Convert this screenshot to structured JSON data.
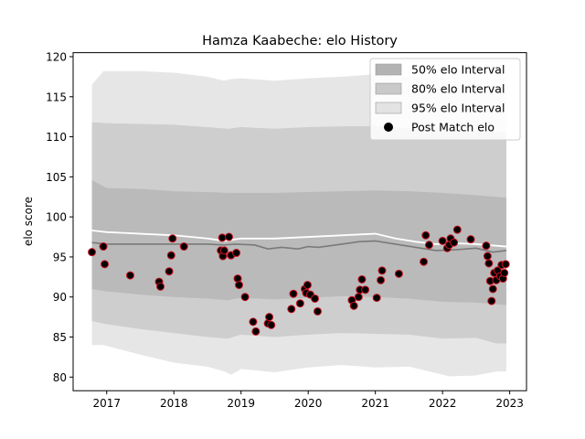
{
  "chart_data": {
    "type": "scatter",
    "title": "Hamza Kaabeche: elo History",
    "xlabel": "",
    "ylabel": "elo score",
    "xlim": [
      2016.5,
      2023.25
    ],
    "ylim": [
      78.3,
      120.5
    ],
    "x_ticks": [
      2017,
      2018,
      2019,
      2020,
      2021,
      2022,
      2023
    ],
    "x_tick_labels": [
      "2017",
      "2018",
      "2019",
      "2020",
      "2021",
      "2022",
      "2023"
    ],
    "y_ticks": [
      80,
      85,
      90,
      95,
      100,
      105,
      110,
      115,
      120
    ],
    "y_tick_labels": [
      "80",
      "85",
      "90",
      "95",
      "100",
      "105",
      "110",
      "115",
      "120"
    ],
    "legend_placement": "top-right",
    "legend": [
      {
        "label": "50% elo Interval",
        "kind": "band",
        "color": "#b3b3b3"
      },
      {
        "label": "80% elo Interval",
        "kind": "band",
        "color": "#c9c9c9"
      },
      {
        "label": "95% elo Interval",
        "kind": "band",
        "color": "#e3e3e3"
      },
      {
        "label": "Post Match elo",
        "kind": "marker",
        "color": "#000000"
      }
    ],
    "colors": {
      "band95": "#e3e3e3",
      "band80": "#cbcbcb",
      "band50": "#b8b8b8",
      "median": "#7a7a7a",
      "mean": "#ffffff",
      "point_fill": "#000000",
      "point_edge": "#cc1122"
    },
    "band95": {
      "x": [
        2016.78,
        2016.95,
        2017.5,
        2018.0,
        2018.5,
        2018.75,
        2018.85,
        2019.0,
        2019.5,
        2020.0,
        2020.5,
        2021.0,
        2021.5,
        2022.0,
        2022.1,
        2022.5,
        2022.8,
        2022.95
      ],
      "upper": [
        116.5,
        118.2,
        118.2,
        118.0,
        117.5,
        117.0,
        117.2,
        117.3,
        117.0,
        117.3,
        117.5,
        117.8,
        117.5,
        117.3,
        117.0,
        117.0,
        117.2,
        117.3
      ],
      "lower": [
        84.0,
        84.0,
        82.8,
        81.8,
        81.3,
        80.7,
        80.3,
        81.0,
        80.6,
        81.2,
        81.5,
        81.2,
        81.3,
        80.3,
        80.1,
        80.2,
        80.7,
        80.7
      ]
    },
    "band80": {
      "x": [
        2016.78,
        2017.0,
        2017.5,
        2018.0,
        2018.5,
        2018.8,
        2019.0,
        2019.5,
        2020.0,
        2020.5,
        2021.0,
        2021.5,
        2022.0,
        2022.5,
        2022.8,
        2022.95
      ],
      "upper": [
        111.8,
        111.7,
        111.6,
        111.5,
        111.2,
        111.0,
        111.2,
        111.0,
        111.2,
        111.3,
        111.3,
        111.1,
        111.0,
        110.8,
        110.6,
        110.5
      ],
      "lower": [
        87.0,
        86.6,
        86.0,
        85.5,
        85.0,
        84.8,
        85.3,
        85.0,
        85.3,
        85.5,
        85.4,
        85.3,
        84.8,
        84.9,
        84.2,
        84.2
      ]
    },
    "band50": {
      "x": [
        2016.78,
        2017.0,
        2017.5,
        2018.0,
        2018.5,
        2018.8,
        2019.0,
        2019.5,
        2020.0,
        2020.5,
        2021.0,
        2021.5,
        2022.0,
        2022.5,
        2022.8,
        2022.95
      ],
      "upper": [
        104.6,
        103.6,
        103.5,
        103.2,
        103.1,
        103.0,
        103.0,
        103.0,
        103.1,
        103.2,
        103.3,
        103.2,
        103.0,
        102.7,
        102.5,
        102.4
      ],
      "lower": [
        91.0,
        90.7,
        90.3,
        90.0,
        89.8,
        89.6,
        89.9,
        89.7,
        89.9,
        90.1,
        90.0,
        89.8,
        89.4,
        89.3,
        89.1,
        89.0
      ]
    },
    "median": {
      "x": [
        2016.78,
        2017.0,
        2017.5,
        2018.0,
        2018.5,
        2018.75,
        2018.9,
        2019.2,
        2019.4,
        2019.6,
        2019.85,
        2020.0,
        2020.15,
        2020.5,
        2020.75,
        2021.0,
        2021.3,
        2021.6,
        2021.9,
        2022.2,
        2022.5,
        2022.75,
        2022.95
      ],
      "y": [
        96.8,
        96.6,
        96.6,
        96.6,
        96.6,
        96.5,
        96.6,
        96.5,
        96.0,
        96.2,
        96.0,
        96.3,
        96.2,
        96.6,
        96.9,
        97.0,
        96.6,
        96.2,
        95.8,
        95.9,
        96.1,
        95.6,
        95.8
      ]
    },
    "mean": {
      "x": [
        2016.78,
        2017.0,
        2017.5,
        2018.0,
        2018.5,
        2018.75,
        2019.0,
        2019.5,
        2020.0,
        2020.5,
        2021.0,
        2021.3,
        2021.6,
        2021.9,
        2022.2,
        2022.5,
        2022.8,
        2022.95
      ],
      "y": [
        98.3,
        98.1,
        97.9,
        97.7,
        97.3,
        97.0,
        97.3,
        97.3,
        97.5,
        97.7,
        97.9,
        97.3,
        96.9,
        96.6,
        96.7,
        96.6,
        96.4,
        96.3
      ]
    },
    "points": [
      {
        "x": 2016.78,
        "y": 95.6
      },
      {
        "x": 2016.95,
        "y": 96.3
      },
      {
        "x": 2016.97,
        "y": 94.1
      },
      {
        "x": 2017.35,
        "y": 92.7
      },
      {
        "x": 2017.78,
        "y": 91.9
      },
      {
        "x": 2017.8,
        "y": 91.3
      },
      {
        "x": 2017.93,
        "y": 93.2
      },
      {
        "x": 2017.96,
        "y": 95.2
      },
      {
        "x": 2017.98,
        "y": 97.3
      },
      {
        "x": 2018.15,
        "y": 96.3
      },
      {
        "x": 2018.7,
        "y": 95.8
      },
      {
        "x": 2018.72,
        "y": 97.4
      },
      {
        "x": 2018.73,
        "y": 95.1
      },
      {
        "x": 2018.75,
        "y": 95.8
      },
      {
        "x": 2018.82,
        "y": 97.5
      },
      {
        "x": 2018.85,
        "y": 95.2
      },
      {
        "x": 2018.93,
        "y": 95.5
      },
      {
        "x": 2018.95,
        "y": 92.3
      },
      {
        "x": 2018.97,
        "y": 91.5
      },
      {
        "x": 2019.06,
        "y": 90.0
      },
      {
        "x": 2019.18,
        "y": 86.9
      },
      {
        "x": 2019.22,
        "y": 85.7
      },
      {
        "x": 2019.4,
        "y": 86.7
      },
      {
        "x": 2019.42,
        "y": 87.5
      },
      {
        "x": 2019.45,
        "y": 86.5
      },
      {
        "x": 2019.75,
        "y": 88.5
      },
      {
        "x": 2019.78,
        "y": 90.4
      },
      {
        "x": 2019.88,
        "y": 89.2
      },
      {
        "x": 2019.95,
        "y": 91.0
      },
      {
        "x": 2019.97,
        "y": 90.5
      },
      {
        "x": 2019.99,
        "y": 91.5
      },
      {
        "x": 2020.03,
        "y": 90.3
      },
      {
        "x": 2020.1,
        "y": 89.8
      },
      {
        "x": 2020.14,
        "y": 88.2
      },
      {
        "x": 2020.65,
        "y": 89.6
      },
      {
        "x": 2020.68,
        "y": 88.9
      },
      {
        "x": 2020.75,
        "y": 90.0
      },
      {
        "x": 2020.77,
        "y": 90.9
      },
      {
        "x": 2020.8,
        "y": 92.2
      },
      {
        "x": 2020.85,
        "y": 90.9
      },
      {
        "x": 2021.02,
        "y": 89.9
      },
      {
        "x": 2021.08,
        "y": 92.1
      },
      {
        "x": 2021.1,
        "y": 93.3
      },
      {
        "x": 2021.35,
        "y": 92.9
      },
      {
        "x": 2021.72,
        "y": 94.4
      },
      {
        "x": 2021.75,
        "y": 97.7
      },
      {
        "x": 2021.8,
        "y": 96.5
      },
      {
        "x": 2022.0,
        "y": 97.0
      },
      {
        "x": 2022.07,
        "y": 96.1
      },
      {
        "x": 2022.1,
        "y": 96.5
      },
      {
        "x": 2022.12,
        "y": 97.3
      },
      {
        "x": 2022.17,
        "y": 96.8
      },
      {
        "x": 2022.22,
        "y": 98.4
      },
      {
        "x": 2022.42,
        "y": 97.2
      },
      {
        "x": 2022.65,
        "y": 96.4
      },
      {
        "x": 2022.67,
        "y": 95.1
      },
      {
        "x": 2022.69,
        "y": 94.2
      },
      {
        "x": 2022.71,
        "y": 92.0
      },
      {
        "x": 2022.73,
        "y": 89.5
      },
      {
        "x": 2022.75,
        "y": 91.0
      },
      {
        "x": 2022.77,
        "y": 93.0
      },
      {
        "x": 2022.8,
        "y": 92.1
      },
      {
        "x": 2022.82,
        "y": 93.3
      },
      {
        "x": 2022.86,
        "y": 92.6
      },
      {
        "x": 2022.88,
        "y": 94.0
      },
      {
        "x": 2022.9,
        "y": 92.3
      },
      {
        "x": 2022.92,
        "y": 93.0
      },
      {
        "x": 2022.94,
        "y": 94.1
      }
    ]
  }
}
